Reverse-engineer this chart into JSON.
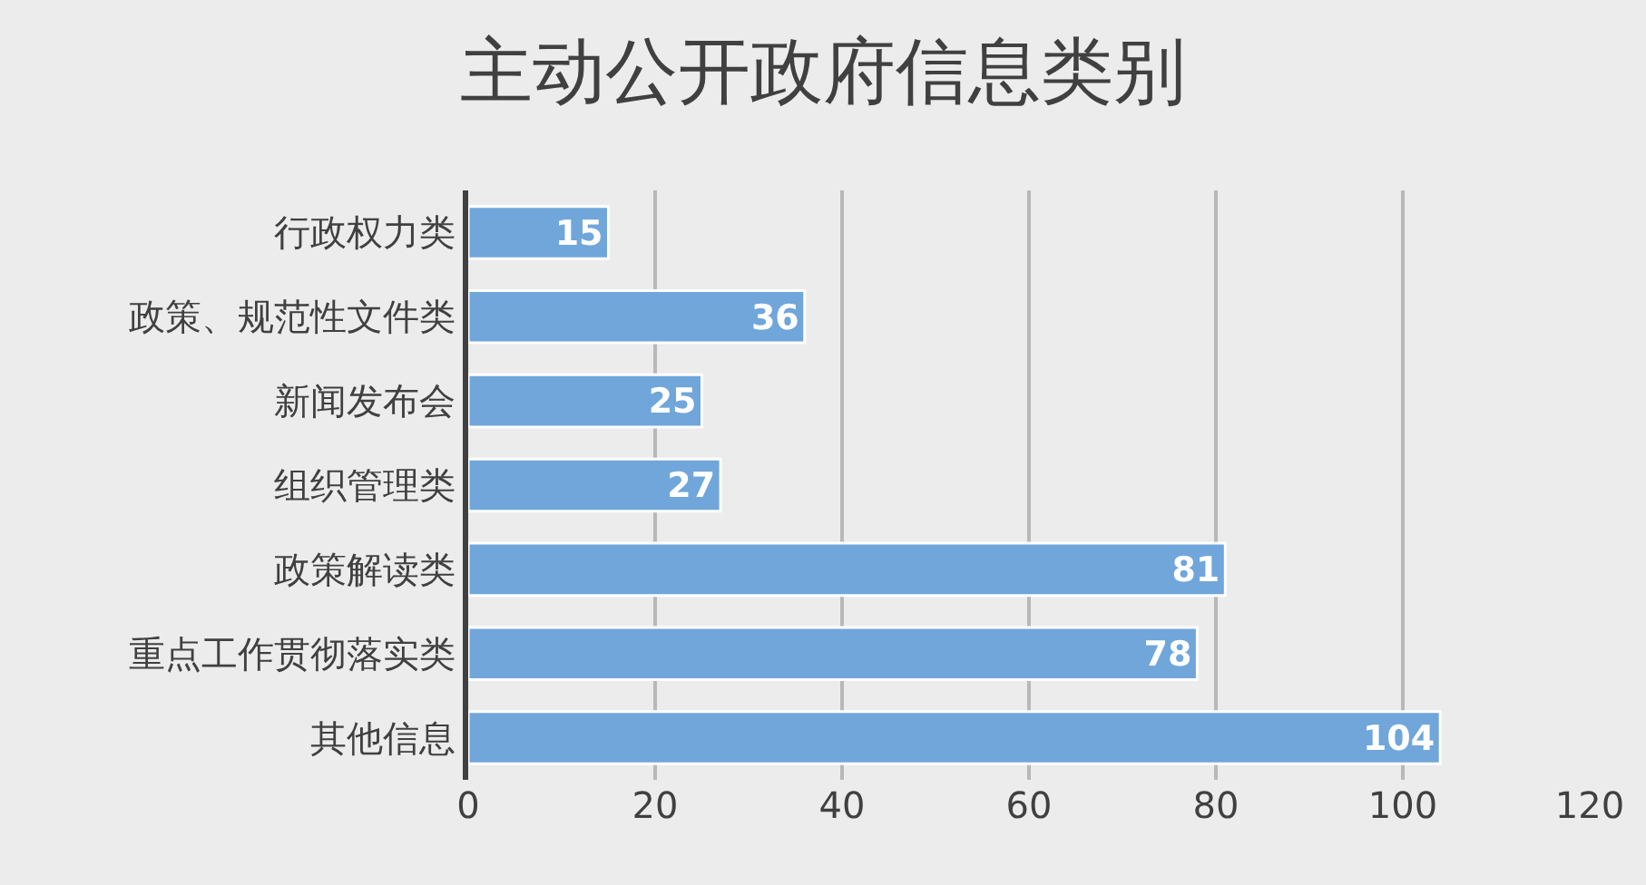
{
  "chart_data": {
    "type": "bar",
    "orientation": "horizontal",
    "title": "主动公开政府信息类别",
    "categories": [
      "行政权力类",
      "政策、规范性文件类",
      "新闻发布会",
      "组织管理类",
      "政策解读类",
      "重点工作贯彻落实类",
      "其他信息"
    ],
    "values": [
      15,
      36,
      25,
      27,
      81,
      78,
      104
    ],
    "color": "#70a6da",
    "xlim": [
      0,
      120
    ],
    "xticks": [
      0,
      20,
      40,
      60,
      80,
      100,
      120
    ],
    "grid": "x",
    "data_labels": true
  }
}
